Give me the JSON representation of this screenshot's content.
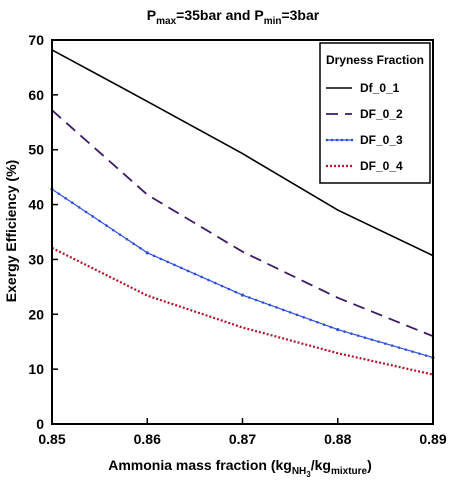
{
  "chart_data": {
    "type": "line",
    "title": {
      "prefix": "P",
      "sub1": "max",
      "mid": "=35bar and P",
      "sub2": "min",
      "suffix": "=3bar"
    },
    "ylabel": "Exergy Efficiency (%)",
    "xlabel": {
      "prefix": "Ammonia mass fraction (kg",
      "sub1": "NH",
      "sub1b": "3",
      "mid": "/kg",
      "sub2": "mixture",
      "suffix": ")"
    },
    "xlim": [
      0.85,
      0.89
    ],
    "ylim": [
      0,
      70
    ],
    "x_ticks": [
      "0.85",
      "0.86",
      "0.87",
      "0.88",
      "0.89"
    ],
    "y_ticks": [
      "0",
      "10",
      "20",
      "30",
      "40",
      "50",
      "60",
      "70"
    ],
    "x": [
      0.85,
      0.86,
      0.87,
      0.88,
      0.89
    ],
    "legend": {
      "title": "Dryness Fraction",
      "placement": "top-right"
    },
    "series": [
      {
        "name": "Df_0_1",
        "values": [
          68.2,
          58.8,
          49.3,
          39.0,
          30.7
        ],
        "color": "#000000",
        "style": "solid"
      },
      {
        "name": "DF_0_2",
        "values": [
          57.2,
          41.8,
          31.4,
          23.0,
          16.0
        ],
        "color": "#3b1a66",
        "style": "dashed"
      },
      {
        "name": "DF_0_3",
        "values": [
          42.8,
          31.2,
          23.5,
          17.2,
          12.1
        ],
        "color": "#2f4fe0",
        "style": "marker-line"
      },
      {
        "name": "DF_0_4",
        "values": [
          32.1,
          23.4,
          17.6,
          12.9,
          9.0
        ],
        "color": "#b5122b",
        "style": "dotted"
      }
    ]
  }
}
